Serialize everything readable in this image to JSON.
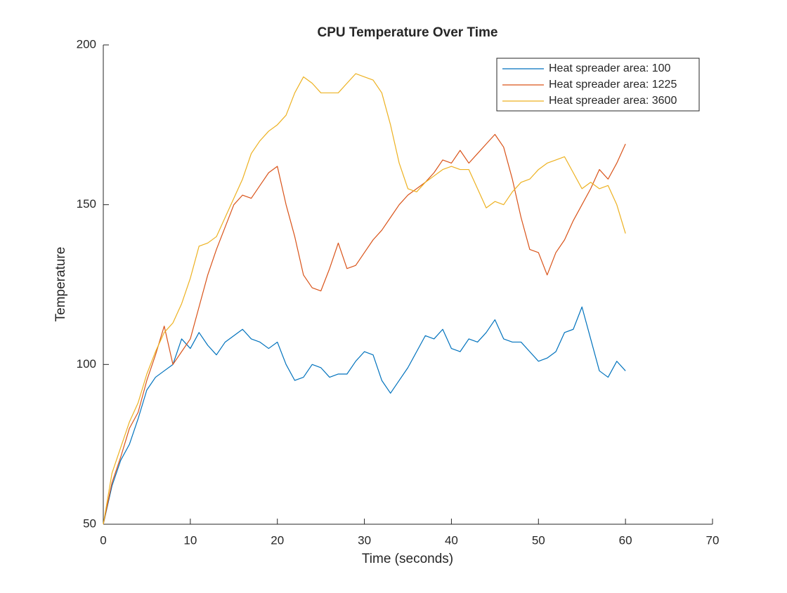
{
  "chart_data": {
    "type": "line",
    "title": "CPU Temperature Over Time",
    "xlabel": "Time (seconds)",
    "ylabel": "Temperature",
    "xlim": [
      0,
      70
    ],
    "xticks": [
      0,
      10,
      20,
      30,
      40,
      50,
      60,
      70
    ],
    "ylim": [
      50,
      200
    ],
    "yticks": [
      50,
      100,
      150,
      200
    ],
    "legend": "top-right",
    "grid": false,
    "x": [
      0,
      1,
      2,
      3,
      4,
      5,
      6,
      7,
      8,
      9,
      10,
      11,
      12,
      13,
      14,
      15,
      16,
      17,
      18,
      19,
      20,
      21,
      22,
      23,
      24,
      25,
      26,
      27,
      28,
      29,
      30,
      31,
      32,
      33,
      34,
      35,
      36,
      37,
      38,
      39,
      40,
      41,
      42,
      43,
      44,
      45,
      46,
      47,
      48,
      49,
      50,
      51,
      52,
      53,
      54,
      55,
      56,
      57,
      58,
      59,
      60
    ],
    "series": [
      {
        "name": "Heat spreader area: 100",
        "color": "#0072BD",
        "values": [
          50,
          62,
          70,
          75,
          83,
          92,
          96,
          98,
          100,
          108,
          105,
          110,
          106,
          103,
          107,
          109,
          111,
          108,
          107,
          105,
          107,
          100,
          95,
          96,
          100,
          99,
          96,
          97,
          97,
          101,
          104,
          103,
          95,
          91,
          95,
          99,
          104,
          109,
          108,
          111,
          105,
          104,
          108,
          107,
          110,
          114,
          108,
          107,
          107,
          104,
          101,
          102,
          104,
          110,
          111,
          118,
          108,
          98,
          96,
          101,
          98
        ]
      },
      {
        "name": "Heat spreader area: 1225",
        "color": "#D95319",
        "values": [
          50,
          63,
          71,
          80,
          85,
          95,
          103,
          112,
          100,
          104,
          108,
          118,
          128,
          136,
          143,
          150,
          153,
          152,
          156,
          160,
          162,
          150,
          140,
          128,
          124,
          123,
          130,
          138,
          130,
          131,
          135,
          139,
          142,
          146,
          150,
          153,
          155,
          157,
          160,
          164,
          163,
          167,
          163,
          166,
          169,
          172,
          168,
          158,
          146,
          136,
          135,
          128,
          135,
          139,
          145,
          150,
          155,
          161,
          158,
          163,
          169
        ]
      },
      {
        "name": "Heat spreader area: 3600",
        "color": "#EDB120",
        "values": [
          50,
          66,
          74,
          82,
          88,
          97,
          104,
          110,
          113,
          119,
          127,
          137,
          138,
          140,
          146,
          152,
          158,
          166,
          170,
          173,
          175,
          178,
          185,
          190,
          188,
          185,
          185,
          185,
          188,
          191,
          190,
          189,
          185,
          175,
          163,
          155,
          154,
          157,
          159,
          161,
          162,
          161,
          161,
          155,
          149,
          151,
          150,
          154,
          157,
          158,
          161,
          163,
          164,
          165,
          160,
          155,
          157,
          155,
          156,
          150,
          141
        ]
      }
    ]
  }
}
